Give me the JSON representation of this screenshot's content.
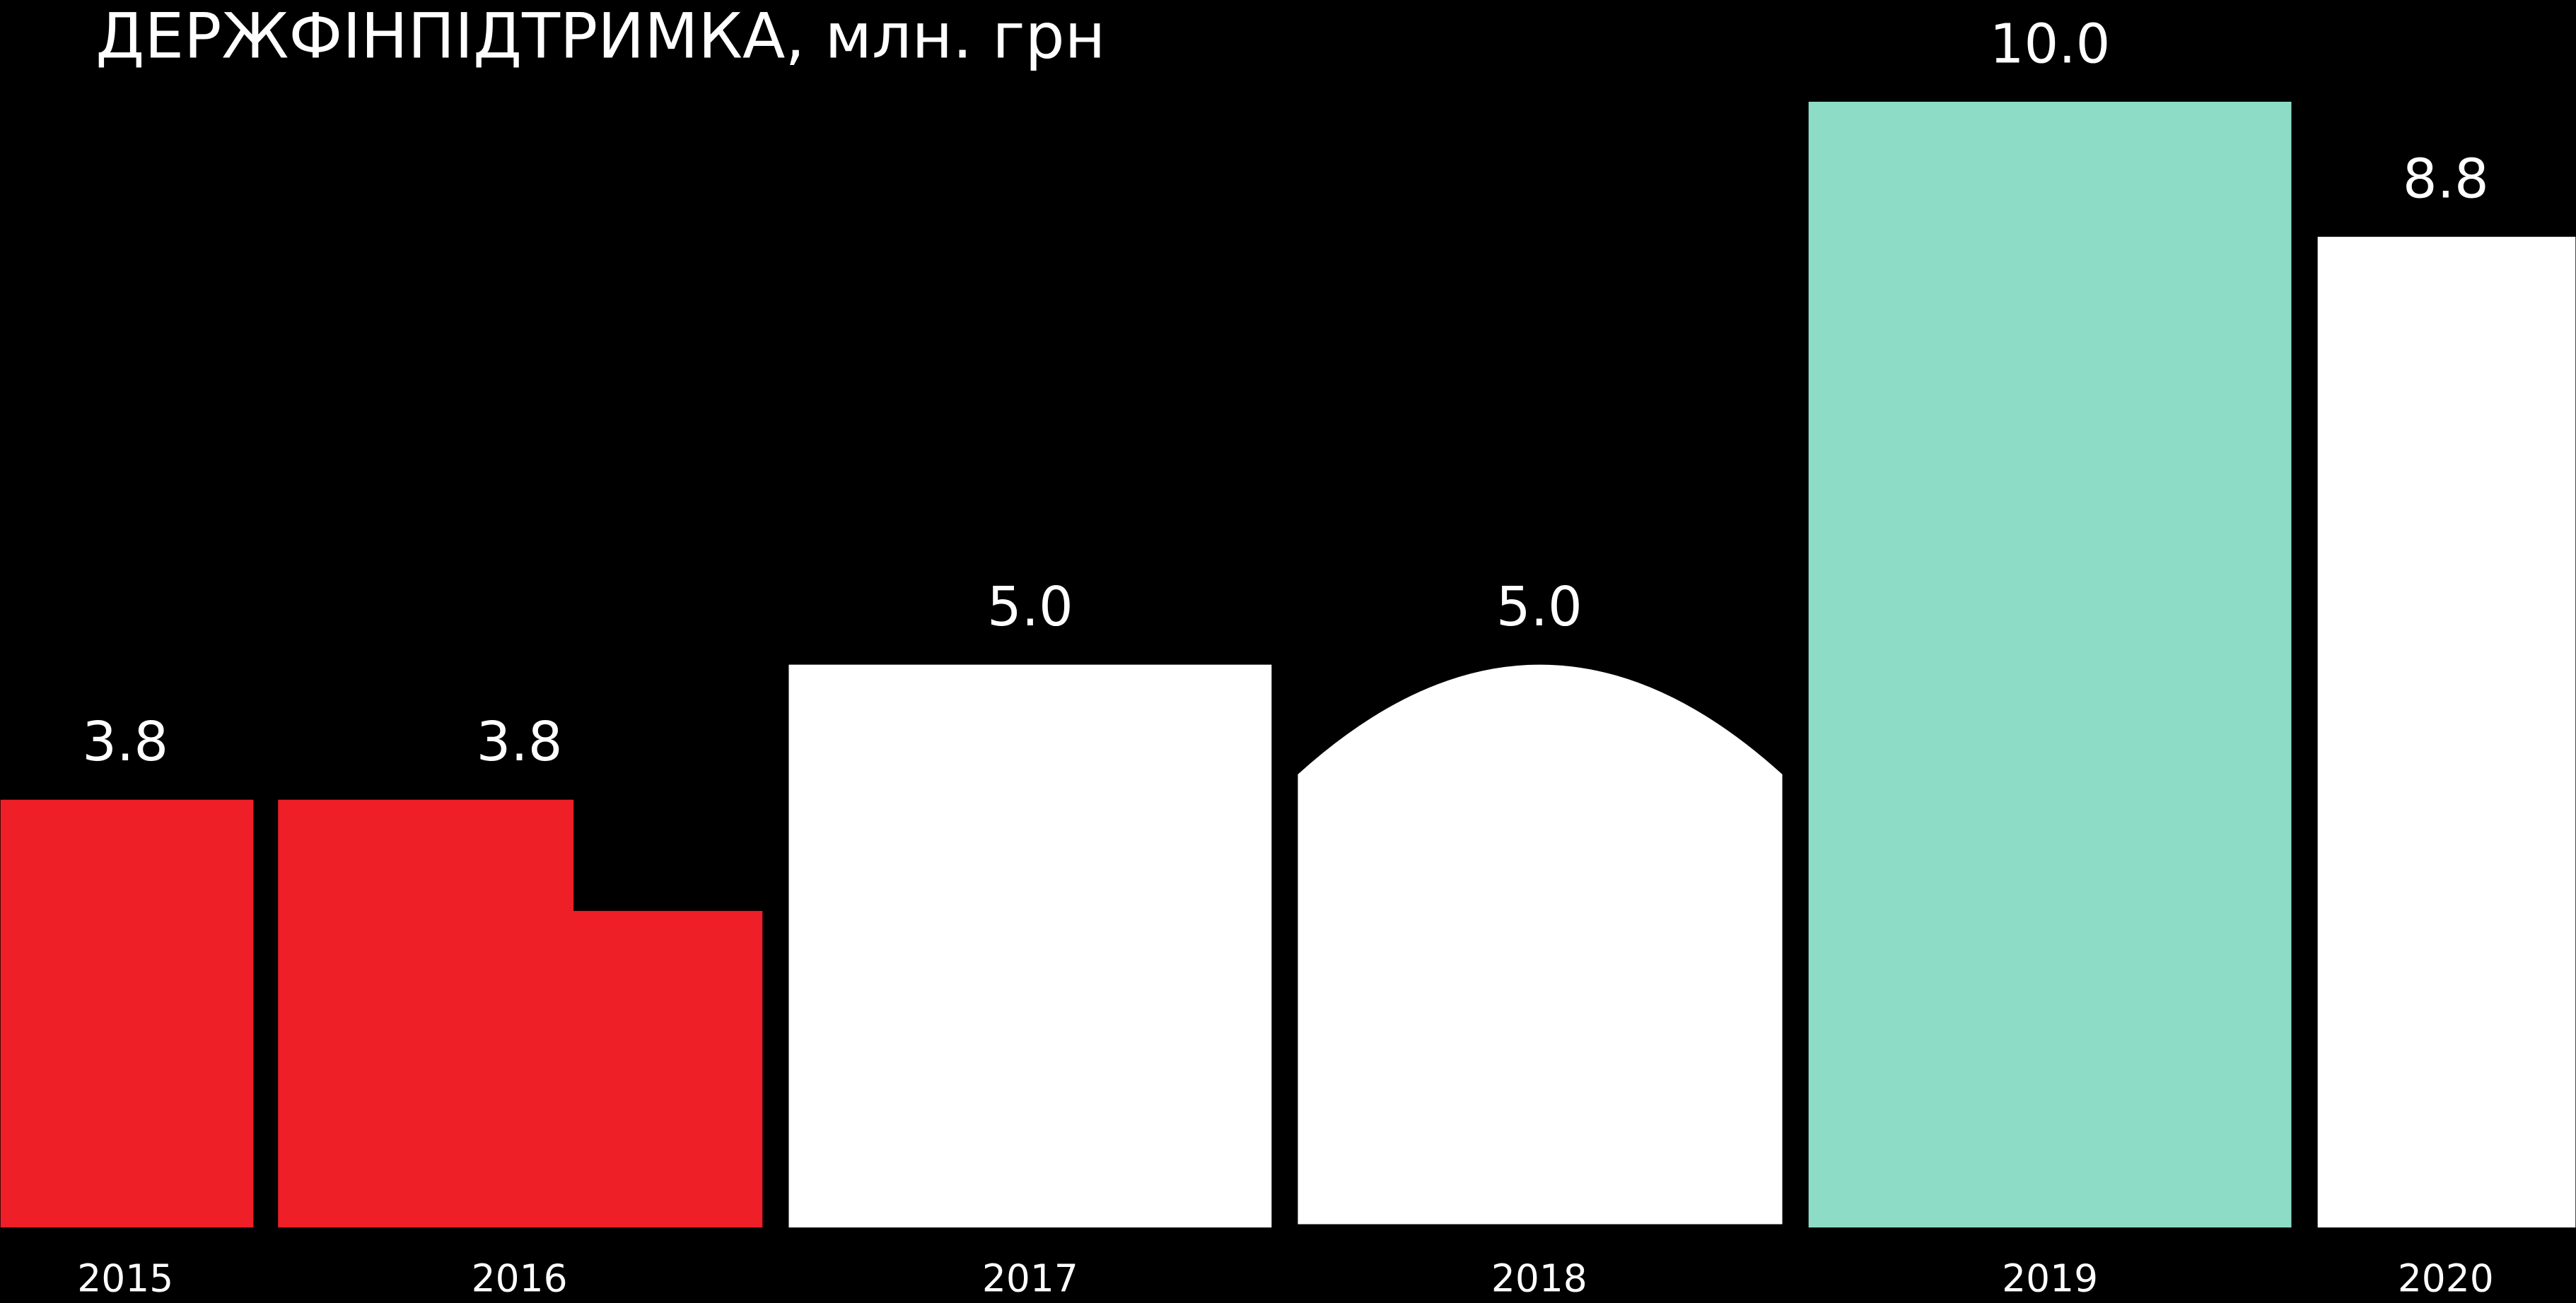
{
  "chart_data": {
    "type": "bar",
    "title": "ДЕРЖФІНПІДТРИМКА, млн. грн",
    "categories": [
      "2015",
      "2016",
      "2017",
      "2018",
      "2019",
      "2020"
    ],
    "values": [
      3.8,
      3.8,
      5.0,
      5.0,
      10.0,
      8.8
    ],
    "value_labels": [
      "3.8",
      "3.8",
      "5.0",
      "5.0",
      "10.0",
      "8.8"
    ],
    "colors": [
      "#ee1f26",
      "#ee1f26",
      "#ffffff",
      "#ffffff",
      "#8ddcc6",
      "#ffffff"
    ]
  }
}
